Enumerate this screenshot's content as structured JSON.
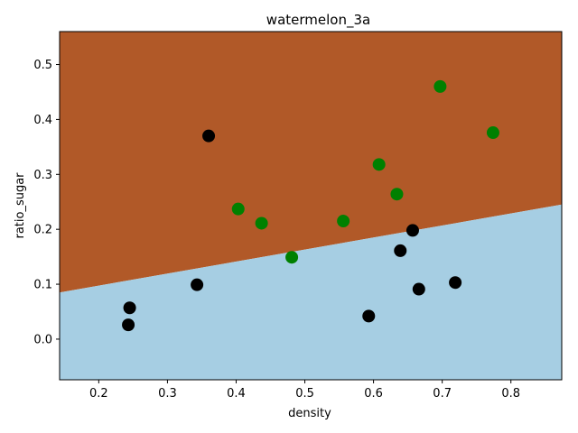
{
  "chart_data": {
    "type": "scatter",
    "title": "watermelon_3a",
    "xlabel": "density",
    "ylabel": "ratio_sugar",
    "xlim": [
      0.143,
      0.874
    ],
    "ylim": [
      -0.074,
      0.56
    ],
    "x_ticks": [
      "0.2",
      "0.3",
      "0.4",
      "0.5",
      "0.6",
      "0.7",
      "0.8"
    ],
    "y_ticks": [
      "0.0",
      "0.1",
      "0.2",
      "0.3",
      "0.4",
      "0.5"
    ],
    "grid": false,
    "decision_boundary": {
      "points": [
        [
          0.143,
          0.085
        ],
        [
          0.874,
          0.245
        ]
      ],
      "region_above_color": "#b15928",
      "region_below_color": "#a6cee3"
    },
    "series": [
      {
        "color": "#008000",
        "points": [
          [
            0.697,
            0.46
          ],
          [
            0.774,
            0.376
          ],
          [
            0.634,
            0.264
          ],
          [
            0.608,
            0.318
          ],
          [
            0.556,
            0.215
          ],
          [
            0.403,
            0.237
          ],
          [
            0.481,
            0.149
          ],
          [
            0.437,
            0.211
          ]
        ]
      },
      {
        "color": "#000000",
        "points": [
          [
            0.666,
            0.091
          ],
          [
            0.243,
            0.026
          ],
          [
            0.245,
            0.057
          ],
          [
            0.343,
            0.099
          ],
          [
            0.639,
            0.161
          ],
          [
            0.657,
            0.198
          ],
          [
            0.36,
            0.37
          ],
          [
            0.593,
            0.042
          ],
          [
            0.719,
            0.103
          ]
        ]
      }
    ]
  }
}
